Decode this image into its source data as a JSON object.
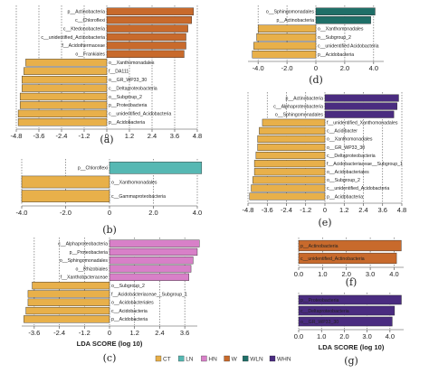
{
  "colors": {
    "CT": "#e8b04a",
    "LN": "#56b8b3",
    "HN": "#d880c8",
    "W": "#c86a2c",
    "WLN": "#1f6f68",
    "WHN": "#4a2c80"
  },
  "legend": [
    {
      "key": "CT",
      "label": "CT"
    },
    {
      "key": "LN",
      "label": "LN"
    },
    {
      "key": "HN",
      "label": "HN"
    },
    {
      "key": "W",
      "label": "W"
    },
    {
      "key": "WLN",
      "label": "WLN"
    },
    {
      "key": "WHN",
      "label": "WHN"
    }
  ],
  "chart_data": [
    {
      "id": "a",
      "type": "bar",
      "orientation": "horizontal",
      "panel_label": "(a)",
      "xlim": [
        -4.8,
        4.8
      ],
      "xticks": [
        -4.8,
        -3.6,
        -2.4,
        -1.2,
        0,
        1.2,
        2.4,
        3.6,
        4.8
      ],
      "tick_labels": [
        "-4.8",
        "-3.6",
        "-2.4",
        "-1.2",
        "0",
        "1.2",
        "2.4",
        "3.6",
        "4.8"
      ],
      "bars": [
        {
          "label": "p__Actinobacteria",
          "value": 4.6,
          "group": "W"
        },
        {
          "label": "c__Chloroflexi",
          "value": 4.5,
          "group": "W"
        },
        {
          "label": "c__Ktedonobacteria",
          "value": 4.3,
          "group": "W"
        },
        {
          "label": "c__unidentified_Actinobacteria",
          "value": 4.2,
          "group": "W"
        },
        {
          "label": "f__Acidothermaceae",
          "value": 4.2,
          "group": "W"
        },
        {
          "label": "o__Frankiales",
          "value": 4.1,
          "group": "W"
        },
        {
          "label": "o__Xanthomonadales",
          "value": -4.3,
          "group": "CT"
        },
        {
          "label": "f__DA111",
          "value": -4.4,
          "group": "CT"
        },
        {
          "label": "o__GR_WP33_30",
          "value": -4.5,
          "group": "CT"
        },
        {
          "label": "c__Deltaproteobacteria",
          "value": -4.5,
          "group": "CT"
        },
        {
          "label": "o__Subgroup_2",
          "value": -4.6,
          "group": "CT"
        },
        {
          "label": "p__Proteobacteria",
          "value": -4.6,
          "group": "CT"
        },
        {
          "label": "c__unidentified_Acidobacteria",
          "value": -4.7,
          "group": "CT"
        },
        {
          "label": "p__Acidobacteria",
          "value": -4.7,
          "group": "CT"
        }
      ]
    },
    {
      "id": "b",
      "type": "bar",
      "orientation": "horizontal",
      "panel_label": "(b)",
      "xlim": [
        -4.0,
        4.0
      ],
      "xticks": [
        -4.0,
        -2.0,
        0,
        2.0,
        4.0
      ],
      "tick_labels": [
        "-4.0",
        "-2.0",
        "0",
        "2.0",
        "4.0"
      ],
      "bars": [
        {
          "label": "p__Chloroflexi",
          "value": 4.2,
          "group": "LN"
        },
        {
          "label": "o__Xanthomonadales",
          "value": -4.0,
          "group": "CT"
        },
        {
          "label": "c__Gammaproteobacteria",
          "value": -4.0,
          "group": "CT"
        }
      ]
    },
    {
      "id": "c",
      "type": "bar",
      "orientation": "horizontal",
      "panel_label": "(c)",
      "xlabel": "LDA SCORE (log 10)",
      "xlim": [
        -4.2,
        4.2
      ],
      "xticks": [
        -3.6,
        -2.4,
        -1.2,
        0,
        1.2,
        2.4,
        3.6
      ],
      "tick_labels": [
        "-3.6",
        "-2.4",
        "-1.2",
        "0",
        "1.2",
        "2.4",
        "3.6"
      ],
      "bars": [
        {
          "label": "c__Alphaproteobacteria",
          "value": 4.3,
          "group": "HN"
        },
        {
          "label": "p__Proteobacteria",
          "value": 4.2,
          "group": "HN"
        },
        {
          "label": "o__Sphingomonadales",
          "value": 4.0,
          "group": "HN"
        },
        {
          "label": "o__Rhizobiales",
          "value": 3.9,
          "group": "HN"
        },
        {
          "label": "f__Xanthobacteraceae",
          "value": 3.8,
          "group": "HN"
        },
        {
          "label": "o__Subgroup_2",
          "value": -3.7,
          "group": "CT"
        },
        {
          "label": "f__Acidobacteriaceae__Subgroup_1",
          "value": -3.9,
          "group": "CT"
        },
        {
          "label": "o__Acidobacteriales",
          "value": -3.9,
          "group": "CT"
        },
        {
          "label": "c__Acidobacteria",
          "value": -4.0,
          "group": "CT"
        },
        {
          "label": "p__Acidobacteria",
          "value": -4.1,
          "group": "CT"
        }
      ]
    },
    {
      "id": "d",
      "type": "bar",
      "orientation": "horizontal",
      "panel_label": "(d)",
      "xlim": [
        -4.7,
        4.7
      ],
      "xticks": [
        -4.0,
        -2.0,
        0,
        2.0,
        4.0
      ],
      "tick_labels": [
        "-4.0",
        "-2.0",
        "0",
        "2.0",
        "4.0"
      ],
      "bars": [
        {
          "label": "o__Sphingomonadales",
          "value": 4.1,
          "group": "WLN"
        },
        {
          "label": "p__Actinobacteria",
          "value": 3.8,
          "group": "WLN"
        },
        {
          "label": "o__Xanthomonadales",
          "value": -4.0,
          "group": "CT"
        },
        {
          "label": "o__Subgroup_2",
          "value": -4.1,
          "group": "CT"
        },
        {
          "label": "c__unidentified Acidobacteria",
          "value": -4.3,
          "group": "CT"
        },
        {
          "label": "p__Acidobacteria",
          "value": -4.4,
          "group": "CT"
        }
      ]
    },
    {
      "id": "e",
      "type": "bar",
      "orientation": "horizontal",
      "panel_label": "(e)",
      "xlim": [
        -4.8,
        4.8
      ],
      "xticks": [
        -4.8,
        -3.6,
        -2.4,
        -1.2,
        0,
        1.2,
        2.4,
        3.6,
        4.8
      ],
      "tick_labels": [
        "-4.8",
        "-3.6",
        "-2.4",
        "-1.2",
        "0",
        "1.2",
        "2.4",
        "3.6",
        "4.8"
      ],
      "bars": [
        {
          "label": "p__Actinobacteria",
          "value": 4.6,
          "group": "WHN"
        },
        {
          "label": "c__Alphaproteobacteria",
          "value": 4.5,
          "group": "WHN"
        },
        {
          "label": "o__Sphingomonadales",
          "value": 4.3,
          "group": "WHN"
        },
        {
          "label": "f__unidentified_Xanthomonadales",
          "value": -3.9,
          "group": "CT"
        },
        {
          "label": "c__Acidibacter",
          "value": -4.1,
          "group": "CT"
        },
        {
          "label": "o__Xanthomonadales",
          "value": -4.2,
          "group": "CT"
        },
        {
          "label": "o__GR_WP33_30",
          "value": -4.2,
          "group": "CT"
        },
        {
          "label": "c__Deltaproteobacteria",
          "value": -4.3,
          "group": "CT"
        },
        {
          "label": "f__Acidobacteriaceae__Subgroup_1",
          "value": -4.4,
          "group": "CT"
        },
        {
          "label": "o__Acidobacteriales",
          "value": -4.4,
          "group": "CT"
        },
        {
          "label": "o__Subgroup_2",
          "value": -4.5,
          "group": "CT"
        },
        {
          "label": "c__unidentified_Acidobacteria",
          "value": -4.6,
          "group": "CT"
        },
        {
          "label": "p__Acidobacteria",
          "value": -4.7,
          "group": "CT"
        }
      ]
    },
    {
      "id": "f",
      "type": "bar",
      "orientation": "horizontal",
      "panel_label": "(f)",
      "xlim": [
        0,
        4.4
      ],
      "xticks": [
        0.0,
        1.0,
        2.0,
        3.0,
        4.0
      ],
      "tick_labels": [
        "0.0",
        "1.0",
        "2.0",
        "3.0",
        "4.0"
      ],
      "bars": [
        {
          "label": "p__Actinobacteria",
          "value": 4.3,
          "group": "W"
        },
        {
          "label": "c__unidentified_Actinobacteria",
          "value": 4.1,
          "group": "W"
        }
      ]
    },
    {
      "id": "g",
      "type": "bar",
      "orientation": "horizontal",
      "panel_label": "(g)",
      "xlabel": "LDA SCORE (log 10)",
      "xlim": [
        0,
        4.6
      ],
      "xticks": [
        0.0,
        1.0,
        2.0,
        3.0,
        4.0
      ],
      "tick_labels": [
        "0.0",
        "1.0",
        "2.0",
        "3.0",
        "4.0"
      ],
      "bars": [
        {
          "label": "p__Proteobacteria",
          "value": 4.5,
          "group": "WHN"
        },
        {
          "label": "c__Deltaproteobacteria",
          "value": 4.2,
          "group": "WHN"
        },
        {
          "label": "o__GR_WP33_30",
          "value": 4.1,
          "group": "WHN"
        }
      ]
    }
  ]
}
